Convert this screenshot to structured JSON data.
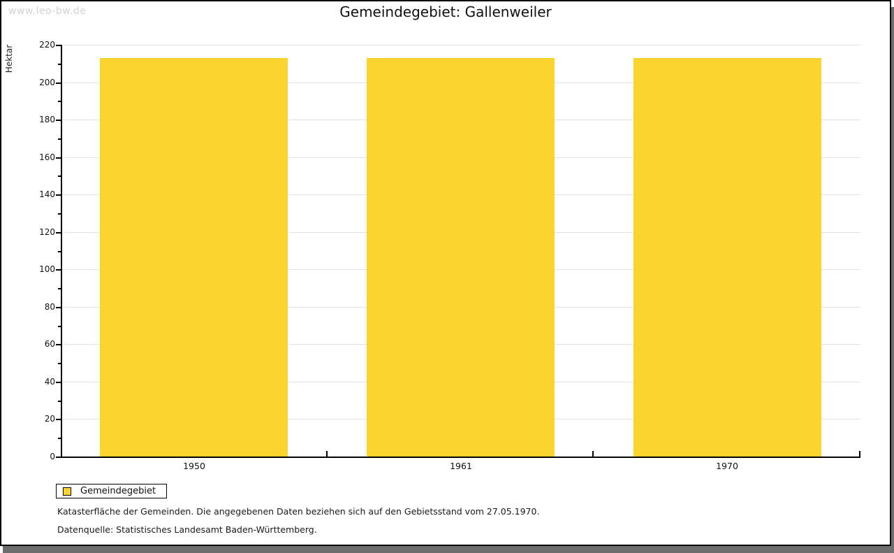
{
  "watermark": "www.leo-bw.de",
  "chart_data": {
    "type": "bar",
    "title": "Gemeindegebiet: Gallenweiler",
    "categories": [
      "1950",
      "1961",
      "1970"
    ],
    "values": [
      213,
      213,
      213
    ],
    "xlabel": "",
    "ylabel": "Hektar",
    "ylim": [
      0,
      220
    ],
    "y_major_step": 20,
    "y_minor_step": 10,
    "grid": true,
    "bar_color": "#FCD42F",
    "legend_position": "bottom-left"
  },
  "legend": {
    "items": [
      {
        "label": "Gemeindegebiet",
        "color": "#FCD42F",
        "swatch_icon": "square-swatch"
      }
    ]
  },
  "footer": {
    "line1": "Katasterfläche der Gemeinden. Die angegebenen Daten beziehen sich auf den Gebietsstand vom 27.05.1970.",
    "line2": "Datenquelle: Statistisches Landesamt Baden-Württemberg."
  },
  "colors": {
    "bar": "#FCD42F",
    "gridline": "#E3E3E3",
    "axis": "#000000",
    "watermark": "#D3D3D3",
    "frame_border": "#000000",
    "frame_shadow": "#6E6E6E"
  }
}
